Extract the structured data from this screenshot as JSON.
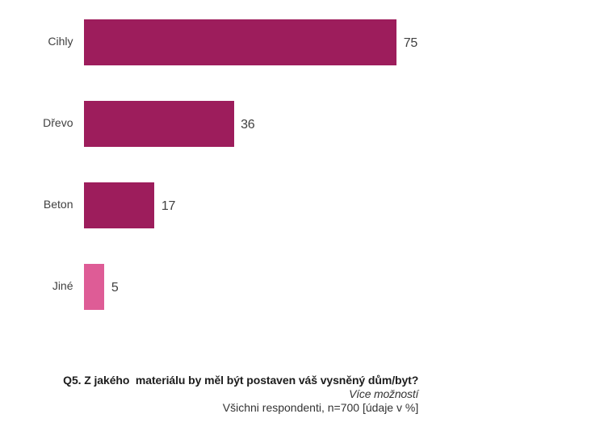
{
  "chart_data": {
    "type": "bar",
    "orientation": "horizontal",
    "categories": [
      "Cihly",
      "Dřevo",
      "Beton",
      "Jiné"
    ],
    "values": [
      75,
      36,
      17,
      5
    ],
    "value_labels": [
      "75",
      "36",
      "17",
      "5"
    ],
    "bar_colors": [
      "#9D1D5C",
      "#9D1D5C",
      "#9D1D5C",
      "#DE5C96"
    ],
    "title": "Q5. Z jakého materiálu by měl být postaven váš vysněný dům/byt?",
    "xlabel": "",
    "ylabel": "",
    "xlim": [
      0,
      80
    ],
    "grid": false,
    "legend": false,
    "units": "%"
  },
  "footer": {
    "question": "Q5. Z jakého  materiálu by měl být postaven váš vysněný dům/byt?",
    "note": "Více možností",
    "base": "Všichni respondenti, n=700 [údaje v %]"
  },
  "colors": {
    "bar_primary": "#9D1D5C",
    "bar_other": "#DE5C96",
    "label_text": "#404040",
    "footer_text": "#333333",
    "background": "#ffffff"
  }
}
